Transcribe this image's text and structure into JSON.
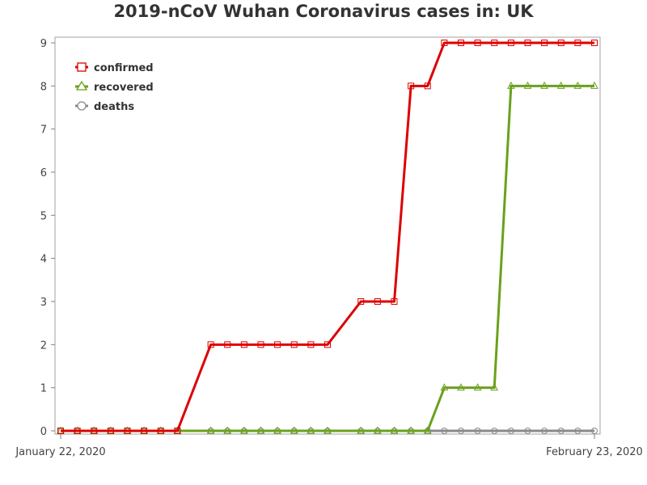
{
  "chart_data": {
    "type": "line",
    "title": "2019-nCoV Wuhan Coronavirus cases in: UK",
    "x_start_label": "January 22, 2020",
    "x_end_label": "February 23, 2020",
    "x": [
      "2020-01-22",
      "2020-01-23",
      "2020-01-24",
      "2020-01-25",
      "2020-01-26",
      "2020-01-27",
      "2020-01-28",
      "2020-01-29",
      "2020-01-31",
      "2020-02-01",
      "2020-02-02",
      "2020-02-03",
      "2020-02-04",
      "2020-02-05",
      "2020-02-06",
      "2020-02-07",
      "2020-02-09",
      "2020-02-10",
      "2020-02-11",
      "2020-02-12",
      "2020-02-13",
      "2020-02-14",
      "2020-02-15",
      "2020-02-16",
      "2020-02-17",
      "2020-02-18",
      "2020-02-19",
      "2020-02-20",
      "2020-02-21",
      "2020-02-22",
      "2020-02-23"
    ],
    "series": [
      {
        "name": "confirmed",
        "color": "#dd0000",
        "marker": "square",
        "values": [
          0,
          0,
          0,
          0,
          0,
          0,
          0,
          0,
          2,
          2,
          2,
          2,
          2,
          2,
          2,
          2,
          3,
          3,
          3,
          8,
          8,
          9,
          9,
          9,
          9,
          9,
          9,
          9,
          9,
          9,
          9
        ]
      },
      {
        "name": "recovered",
        "color": "#6aa11c",
        "marker": "triangle",
        "values": [
          0,
          0,
          0,
          0,
          0,
          0,
          0,
          0,
          0,
          0,
          0,
          0,
          0,
          0,
          0,
          0,
          0,
          0,
          0,
          0,
          0,
          1,
          1,
          1,
          1,
          8,
          8,
          8,
          8,
          8,
          8
        ]
      },
      {
        "name": "deaths",
        "color": "#8a8a8a",
        "marker": "circle",
        "values": [
          0,
          0,
          0,
          0,
          0,
          0,
          0,
          0,
          0,
          0,
          0,
          0,
          0,
          0,
          0,
          0,
          0,
          0,
          0,
          0,
          0,
          0,
          0,
          0,
          0,
          0,
          0,
          0,
          0,
          0,
          0
        ]
      }
    ],
    "y_ticks": [
      "0",
      "1",
      "2",
      "3",
      "4",
      "5",
      "6",
      "7",
      "8",
      "9"
    ],
    "ylim": [
      0,
      9
    ],
    "grid": false,
    "legend_position": "top-left"
  }
}
